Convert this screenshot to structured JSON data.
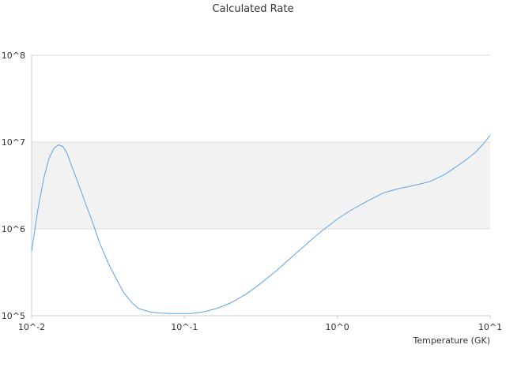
{
  "chart_data": {
    "type": "line",
    "title": "Calculated Rate",
    "xlabel": "Temperature (GK)",
    "ylabel": "",
    "xscale": "log",
    "yscale": "log",
    "xlim": [
      0.01,
      10
    ],
    "ylim": [
      100000,
      100000000
    ],
    "x_ticks": [
      "10^-2",
      "10^-1",
      "10^0",
      "10^1"
    ],
    "y_ticks": [
      "10^5",
      "10^6",
      "10^7",
      "10^8"
    ],
    "grid": true,
    "legend": "none",
    "colors": {
      "line": "#5aa2e8",
      "band": "#f2f2f2",
      "grid": "#dddddd",
      "axis": "#cccccc"
    },
    "series": [
      {
        "x": [
          0.01,
          0.011,
          0.012,
          0.013,
          0.014,
          0.015,
          0.016,
          0.017,
          0.018,
          0.02,
          0.022,
          0.025,
          0.028,
          0.032,
          0.036,
          0.04,
          0.045,
          0.05,
          0.06,
          0.07,
          0.08,
          0.09,
          0.1,
          0.11,
          0.12,
          0.13,
          0.14,
          0.15,
          0.16,
          0.18,
          0.2,
          0.25,
          0.3,
          0.4,
          0.5,
          0.6,
          0.7,
          0.8,
          1.0,
          1.2,
          1.5,
          2.0,
          2.5,
          3.0,
          3.5,
          4.0,
          5.0,
          6.0,
          7.0,
          8.0,
          9.0,
          10.0
        ],
        "y": [
          550000,
          1700000,
          3800000,
          6500000,
          8500000,
          9300000,
          8900000,
          7500000,
          5700000,
          3500000,
          2200000,
          1200000,
          670000,
          390000,
          260000,
          185000,
          143000,
          121000,
          110000,
          107000,
          106000,
          106000,
          106000,
          106000,
          108000,
          110000,
          113000,
          117000,
          120000,
          130000,
          140000,
          175000,
          220000,
          330000,
          470000,
          620000,
          790000,
          960000,
          1300000,
          1600000,
          2000000,
          2600000,
          2900000,
          3100000,
          3300000,
          3500000,
          4200000,
          5200000,
          6300000,
          7600000,
          9500000,
          12000000
        ]
      }
    ]
  }
}
